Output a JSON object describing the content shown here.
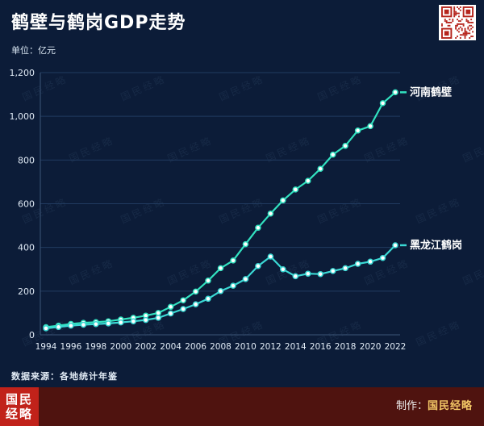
{
  "header": {
    "title": "鹤壁与鹤岗GDP走势",
    "unit_label": "单位：亿元"
  },
  "chart_data": {
    "type": "line",
    "title": "鹤壁与鹤岗GDP走势",
    "ylabel": "亿元",
    "ylim": [
      0,
      1200
    ],
    "yticks": [
      0,
      200,
      400,
      600,
      800,
      1000,
      1200
    ],
    "xticks": [
      1994,
      1996,
      1998,
      2000,
      2002,
      2004,
      2006,
      2008,
      2010,
      2012,
      2014,
      2016,
      2018,
      2020,
      2022
    ],
    "grid": true,
    "legend_position": "line-end-labels",
    "x": [
      1994,
      1995,
      1996,
      1997,
      1998,
      1999,
      2000,
      2001,
      2002,
      2003,
      2004,
      2005,
      2006,
      2007,
      2008,
      2009,
      2010,
      2011,
      2012,
      2013,
      2014,
      2015,
      2016,
      2017,
      2018,
      2019,
      2020,
      2021,
      2022
    ],
    "series": [
      {
        "id": "henan-hebi",
        "name": "河南鹤壁",
        "color": "#32e2c0",
        "values": [
          35,
          42,
          50,
          55,
          58,
          62,
          70,
          78,
          88,
          100,
          128,
          158,
          198,
          248,
          305,
          340,
          415,
          490,
          555,
          615,
          665,
          705,
          760,
          825,
          865,
          935,
          955,
          1060,
          1110
        ]
      },
      {
        "id": "heilongjiang-hegang",
        "name": "黑龙江鹤岗",
        "color": "#3ad8d4",
        "values": [
          30,
          36,
          42,
          46,
          49,
          52,
          57,
          62,
          68,
          78,
          98,
          118,
          140,
          165,
          200,
          225,
          255,
          315,
          358,
          300,
          268,
          280,
          278,
          292,
          305,
          325,
          335,
          352,
          410
        ]
      }
    ]
  },
  "watermark": {
    "text": "国民经略"
  },
  "source_note": "数据来源：各地统计年鉴",
  "footer": {
    "logo_line1": "国民",
    "logo_line2": "经略",
    "credit_prefix": "制作：",
    "credit_name": "国民经略"
  },
  "colors": {
    "background": "#0c1c38",
    "footer_bar": "#4f130f",
    "logo_red": "#c1221a",
    "qr_red": "#b5241c",
    "credit_gold": "#f3c766"
  }
}
